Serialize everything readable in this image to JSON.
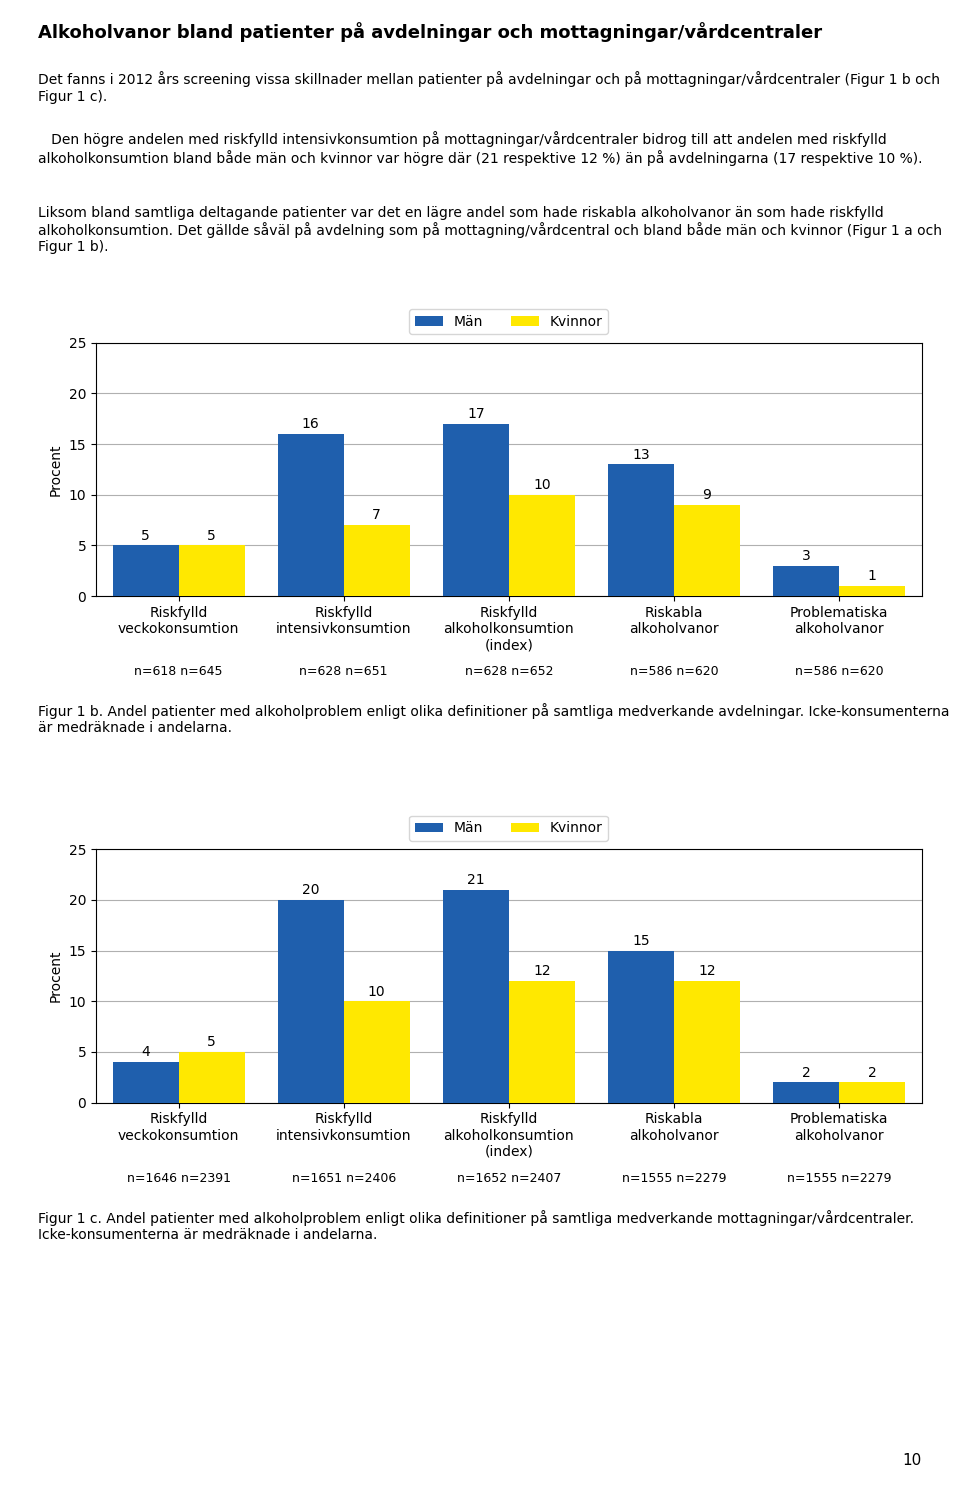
{
  "title": "Alkoholvanor bland patienter på avdelningar och mottagningar/vårdcentraler",
  "annotations": [
    "Det fanns i 2012 års screening vissa skillnader mellan patienter på avdelningar och på mottagningar/vårdcentraler (Figur 1 b och Figur 1 c).",
    "   Den högre andelen med riskfylld intensivkonsumtion på mottagningar/vårdcentraler bidrog till att andelen med riskfylld alkoholkonsumtion bland både män och kvinnor var högre där (21 respektive 12 %) än på avdelningarna (17 respektive 10 %).",
    "Liksom bland samtliga deltagande patienter var det en lägre andel som hade riskabla alkoholvanor än som hade riskfylld alkoholkonsumtion. Det gällde såväl på avdelning som på mottagning/vårdcentral och bland både män och kvinnor (Figur 1 a och Figur 1 b)."
  ],
  "page_number": "10",
  "chart_data": [
    {
      "type": "bar",
      "title": "Figur 1 b. Andel patienter med alkoholproblem enligt olika definitioner på samtliga medverkande avdelningar. Icke-konsumenterna är medräknade i andelarna.",
      "categories": [
        "Riskfylld\nveckokonsumtion",
        "Riskfylld\nintensivkonsumtion",
        "Riskfylld\nalkoholkonsumtion\n(index)",
        "Riskabla\nalkoholvanor",
        "Problematiska\nalkoholvanor"
      ],
      "series": [
        {
          "name": "Män",
          "color": "#1F5FAD",
          "values": [
            5,
            16,
            17,
            13,
            3
          ]
        },
        {
          "name": "Kvinnor",
          "color": "#FFE800",
          "values": [
            5,
            7,
            10,
            9,
            1
          ]
        }
      ],
      "annotations": [
        "n=618 n=645",
        "n=628 n=651",
        "n=628 n=652",
        "n=586 n=620",
        "n=586 n=620"
      ],
      "y_label": "Procent",
      "ylim": [
        0,
        25
      ],
      "yticks": [
        0,
        5,
        10,
        15,
        20,
        25
      ],
      "grid": true,
      "legend": "upper center",
      "data_labels": true
    },
    {
      "type": "bar",
      "title": "Figur 1 c. Andel patienter med alkoholproblem enligt olika definitioner på samtliga medverkande mottagningar/vårdcentraler. Icke-konsumenterna är medräknade i andelarna.",
      "categories": [
        "Riskfylld\nveckokonsumtion",
        "Riskfylld\nintensivkonsumtion",
        "Riskfylld\nalkoholkonsumtion\n(index)",
        "Riskabla\nalkoholvanor",
        "Problematiska\nalkoholvanor"
      ],
      "series": [
        {
          "name": "Män",
          "color": "#1F5FAD",
          "values": [
            4,
            20,
            21,
            15,
            2
          ]
        },
        {
          "name": "Kvinnor",
          "color": "#FFE800",
          "values": [
            5,
            10,
            12,
            12,
            2
          ]
        }
      ],
      "annotations": [
        "n=1646 n=2391",
        "n=1651 n=2406",
        "n=1652 n=2407",
        "n=1555 n=2279",
        "n=1555 n=2279"
      ],
      "y_label": "Procent",
      "ylim": [
        0,
        25
      ],
      "yticks": [
        0,
        5,
        10,
        15,
        20,
        25
      ],
      "grid": true,
      "legend": "upper center",
      "data_labels": true
    }
  ]
}
